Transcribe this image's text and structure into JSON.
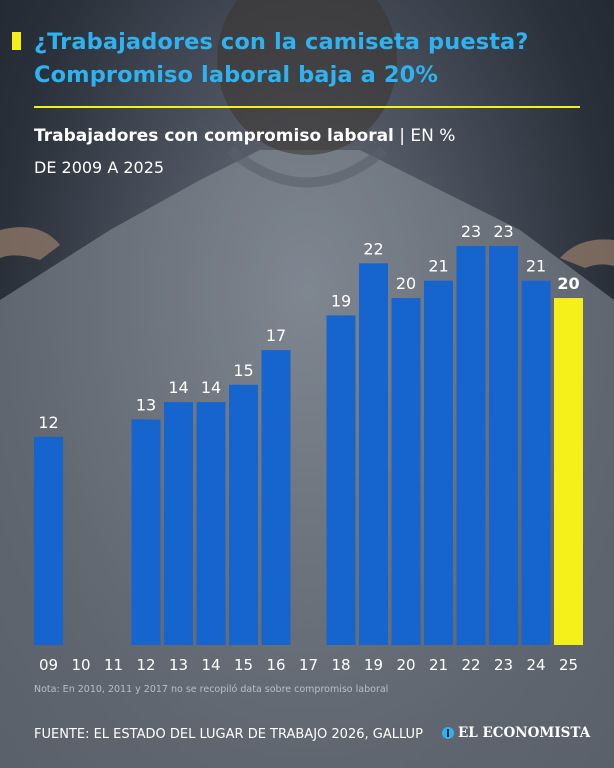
{
  "header": {
    "title_line1": "¿Trabajadores con la camiseta puesta?",
    "title_line2": "Compromiso laboral baja a 20%",
    "accent_color": "#f5ef1a",
    "title_color": "#2fb2f0"
  },
  "chart_data": {
    "type": "bar",
    "title": "Trabajadores con compromiso laboral",
    "unit_label": "| EN %",
    "subtitle": "DE 2009 A 2025",
    "categories": [
      "09",
      "10",
      "11",
      "12",
      "13",
      "14",
      "15",
      "16",
      "17",
      "18",
      "19",
      "20",
      "21",
      "22",
      "23",
      "24",
      "25"
    ],
    "values": [
      12,
      null,
      null,
      13,
      14,
      14,
      15,
      17,
      null,
      19,
      22,
      20,
      21,
      23,
      23,
      21,
      20
    ],
    "labels": [
      "12",
      "",
      "",
      "13",
      "14",
      "14",
      "15",
      "17",
      "",
      "19",
      "22",
      "20",
      "21",
      "23",
      "23",
      "21",
      "20"
    ],
    "highlight_index": 16,
    "bar_color": "#1665cf",
    "highlight_color": "#f5ef1a",
    "ylim": [
      0,
      23
    ]
  },
  "footer": {
    "note": "Nota: En 2010, 2011 y 2017 no se recopiló data sobre compromiso laboral",
    "source": "FUENTE: EL ESTADO DEL LUGAR DE TRABAJO 2026, GALLUP",
    "brand": "EL ECONOMISTA",
    "brand_icon": "economista-logo-icon"
  }
}
